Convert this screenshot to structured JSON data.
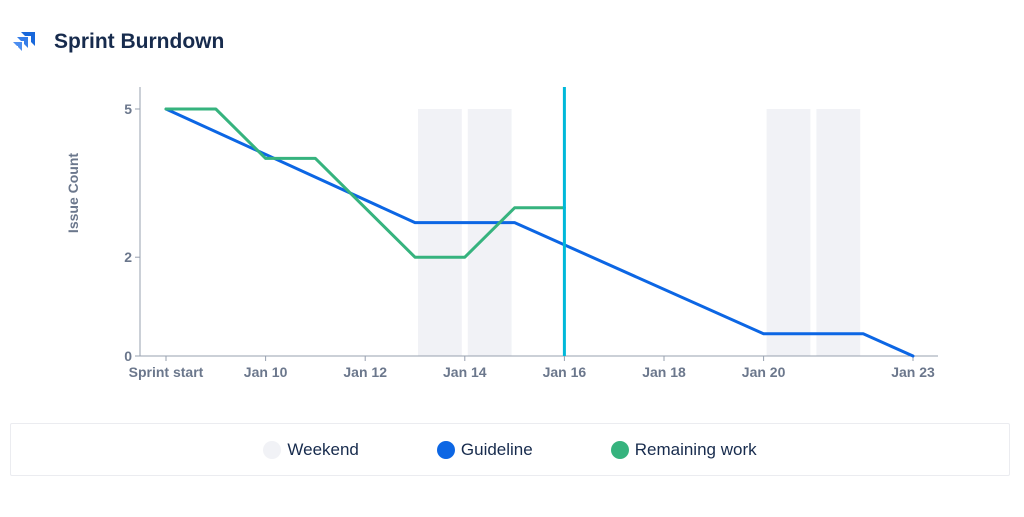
{
  "header": {
    "title": "Sprint Burndown",
    "icon": "jira-logo-icon"
  },
  "colors": {
    "weekend": "#f1f2f6",
    "guideline": "#0c66e4",
    "remaining": "#36b37e",
    "today": "#00b8d9",
    "axis": "#97a0af",
    "tick_text": "#6b778c"
  },
  "chart_data": {
    "type": "line",
    "title": "Sprint Burndown",
    "xlabel": "",
    "ylabel": "Issue Count",
    "xlim": [
      "2024-01-08",
      "2024-01-23"
    ],
    "ylim": [
      0,
      5.5
    ],
    "y_ticks": [
      {
        "value": 0,
        "label": "0"
      },
      {
        "value": 2,
        "label": "2"
      },
      {
        "value": 5,
        "label": "5"
      }
    ],
    "x_ticks": [
      {
        "date": "2024-01-08",
        "label": "Sprint start"
      },
      {
        "date": "2024-01-10",
        "label": "Jan 10"
      },
      {
        "date": "2024-01-12",
        "label": "Jan 12"
      },
      {
        "date": "2024-01-14",
        "label": "Jan 14"
      },
      {
        "date": "2024-01-16",
        "label": "Jan 16"
      },
      {
        "date": "2024-01-18",
        "label": "Jan 18"
      },
      {
        "date": "2024-01-20",
        "label": "Jan 20"
      },
      {
        "date": "2024-01-23",
        "label": "Jan 23"
      }
    ],
    "weekend_bands": [
      {
        "from": "2024-01-13",
        "to": "2024-01-15",
        "gap": "2024-01-14"
      },
      {
        "from": "2024-01-20",
        "to": "2024-01-22",
        "gap": "2024-01-21"
      }
    ],
    "today_marker": "2024-01-16",
    "series": [
      {
        "name": "Guideline",
        "points": [
          {
            "x": "2024-01-08",
            "y": 5
          },
          {
            "x": "2024-01-13",
            "y": 2.7
          },
          {
            "x": "2024-01-15",
            "y": 2.7
          },
          {
            "x": "2024-01-20",
            "y": 0.45
          },
          {
            "x": "2024-01-22",
            "y": 0.45
          },
          {
            "x": "2024-01-23",
            "y": 0
          }
        ]
      },
      {
        "name": "Remaining work",
        "points": [
          {
            "x": "2024-01-08",
            "y": 5
          },
          {
            "x": "2024-01-09",
            "y": 5
          },
          {
            "x": "2024-01-10",
            "y": 4
          },
          {
            "x": "2024-01-11",
            "y": 4
          },
          {
            "x": "2024-01-13",
            "y": 2
          },
          {
            "x": "2024-01-14",
            "y": 2
          },
          {
            "x": "2024-01-15",
            "y": 3
          },
          {
            "x": "2024-01-16",
            "y": 3
          }
        ]
      }
    ],
    "legend": {
      "position": "bottom",
      "items": [
        {
          "label": "Weekend",
          "color": "#f1f2f6"
        },
        {
          "label": "Guideline",
          "color": "#0c66e4"
        },
        {
          "label": "Remaining work",
          "color": "#36b37e"
        }
      ]
    }
  }
}
